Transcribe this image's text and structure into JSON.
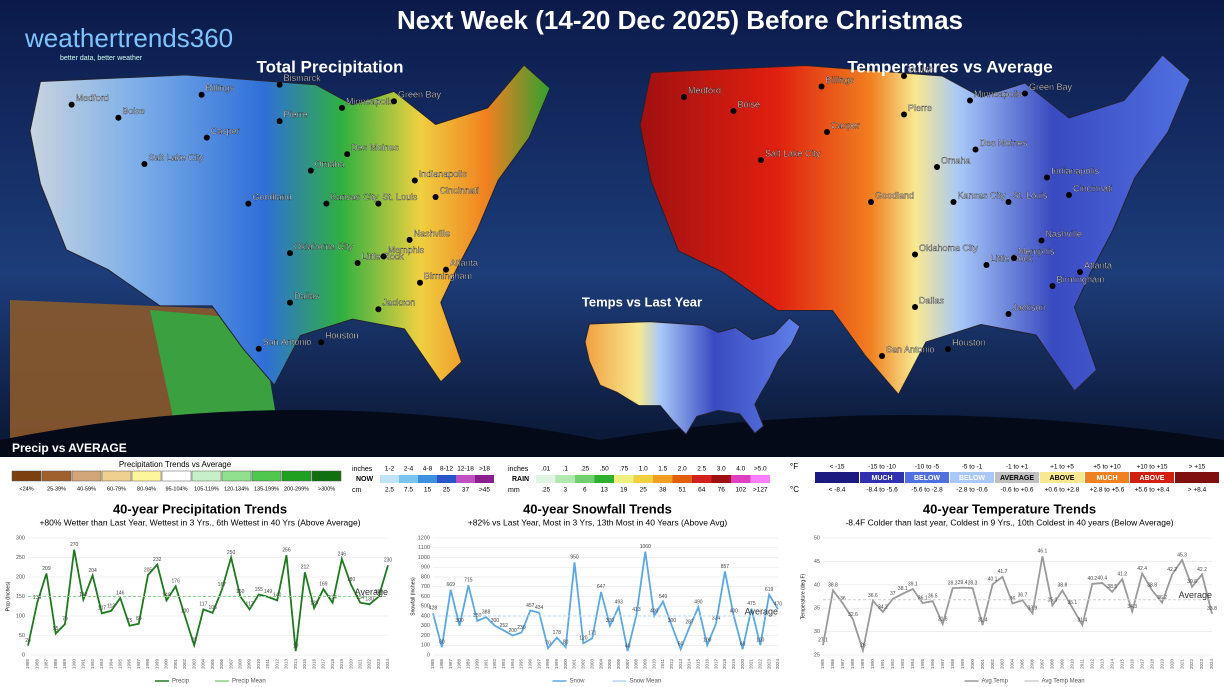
{
  "header": {
    "logo": "weathertrends360",
    "tagline": "better data, better weather",
    "title": "Next Week (14-20 Dec 2025) Before Christmas",
    "footnote": "Precip vs AVERAGE"
  },
  "maps": [
    {
      "title": "Total Precipitation",
      "cities": [
        "Medford",
        "Boise",
        "Billings",
        "Bismarck",
        "Casper",
        "Pierre",
        "Minneapolis",
        "Green Bay",
        "Salt Lake City",
        "Omaha",
        "Des Moines",
        "Goodland",
        "Kansas City",
        "St. Louis",
        "Indianapolis",
        "Cincinnati",
        "Nashville",
        "Oklahoma City",
        "Little Rock",
        "Memphis",
        "Atlanta",
        "Birmingham",
        "Dallas",
        "Jackson",
        "San Antonio",
        "Houston"
      ]
    },
    {
      "title": "Temperatures vs Average",
      "cities": [
        "Medford",
        "Boise",
        "Billings",
        "Duluth",
        "Casper",
        "Pierre",
        "Minneapolis",
        "Green Bay",
        "Salt Lake City",
        "Omaha",
        "Des Moines",
        "Goodland",
        "Kansas City",
        "St. Louis",
        "Indianapolis",
        "Cincinnati",
        "Nashville",
        "Oklahoma City",
        "Little Rock",
        "Memphis",
        "Atlanta",
        "Birmingham",
        "Dallas",
        "Jackson",
        "San Antonio",
        "Houston"
      ]
    },
    {
      "title": "Temps vs Last Year",
      "cities": []
    }
  ],
  "legends": {
    "precip": {
      "title": "Precipitation Trends vs Average",
      "items": [
        {
          "label": "<24%",
          "color": "#7b3f10"
        },
        {
          "label": "25-39%",
          "color": "#a0602d"
        },
        {
          "label": "40-59%",
          "color": "#d2a679"
        },
        {
          "label": "60-79%",
          "color": "#f0d090"
        },
        {
          "label": "80-94%",
          "color": "#fff59a"
        },
        {
          "label": "95-104%",
          "color": "#ffffff"
        },
        {
          "label": "105-119%",
          "color": "#c8f0c8"
        },
        {
          "label": "120-134%",
          "color": "#90e090"
        },
        {
          "label": "135-199%",
          "color": "#50c850"
        },
        {
          "label": "200-299%",
          "color": "#20a020"
        },
        {
          "label": ">300%",
          "color": "#107010"
        }
      ]
    },
    "snow": {
      "unit_top": "inches",
      "unit_mid": "NOW",
      "unit_bottom": "cm",
      "top": [
        "1-2",
        "2-4",
        "4-8",
        "8-12",
        "12-18",
        ">18"
      ],
      "bottom": [
        "2.5",
        "7.5",
        "15",
        "25",
        "37",
        ">45"
      ],
      "colors": [
        "#bfe3f7",
        "#7cc3f0",
        "#3d8fe0",
        "#2a55c8",
        "#c050c0",
        "#8a2090"
      ]
    },
    "rain": {
      "unit_top": "inches",
      "unit_mid": "RAIN",
      "unit_bottom": "mm",
      "top": [
        ".01",
        ".1",
        ".25",
        ".50",
        ".75",
        "1.0",
        "1.5",
        "2.0",
        "2.5",
        "3.0",
        "4.0",
        ">5.0"
      ],
      "bottom": [
        ".25",
        "3",
        "6",
        "13",
        "19",
        "25",
        "38",
        "51",
        "64",
        "76",
        "102",
        ">127"
      ],
      "colors": [
        "#e0f5e0",
        "#b0e8b0",
        "#70d070",
        "#30b030",
        "#f0f080",
        "#f0d040",
        "#f0a020",
        "#e06010",
        "#d02020",
        "#a01010",
        "#e040c0",
        "#ff80ff"
      ]
    },
    "temp": {
      "unit_f": "°F",
      "unit_c": "°C",
      "items": [
        {
          "f": "< -15",
          "c": "< -8.4",
          "color": "#1a1a80"
        },
        {
          "f": "-15 to -10",
          "c": "-8.4 to -5.6",
          "color": "#3030b0",
          "word": "MUCH"
        },
        {
          "f": "-10 to -5",
          "c": "-5.6 to -2.8",
          "color": "#5070e0",
          "word": "BELOW"
        },
        {
          "f": "-5 to -1",
          "c": "-2.8 to -0.6",
          "color": "#a8c8f8",
          "word": "BELOW"
        },
        {
          "f": "-1 to +1",
          "c": "-0.6 to +0.6",
          "color": "#c0c0c0",
          "word": "AVERAGE"
        },
        {
          "f": "+1 to +5",
          "c": "+0.6 to +2.8",
          "color": "#f8e890",
          "word": "ABOVE"
        },
        {
          "f": "+5 to +10",
          "c": "+2.8 to +5.6",
          "color": "#f08020",
          "word": "MUCH"
        },
        {
          "f": "+10 to +15",
          "c": "+5.6 to +8.4",
          "color": "#d02010",
          "word": "ABOVE"
        },
        {
          "f": "> +15",
          "c": "> +8.4",
          "color": "#801010"
        }
      ]
    }
  },
  "chart_data": [
    {
      "type": "line",
      "title": "40-year Precipitation Trends",
      "subtitle": "+80% Wetter than Last Year, Wettest in 3 Yrs., 6th Wettest in 40 Yrs (Above Average)",
      "ylabel": "Prcp (Inches)",
      "annotation": "Average",
      "x": [
        1985,
        1986,
        1987,
        1988,
        1989,
        1990,
        1991,
        1992,
        1993,
        1994,
        1995,
        1996,
        1997,
        1998,
        1999,
        2000,
        2001,
        2002,
        2003,
        2004,
        2005,
        2006,
        2007,
        2008,
        2009,
        2010,
        2011,
        2012,
        2013,
        2014,
        2015,
        2016,
        2017,
        2018,
        2019,
        2020,
        2021,
        2022,
        2023,
        2024
      ],
      "xlim": [
        1985,
        2024
      ],
      "ylim": [
        0,
        300
      ],
      "yticks": [
        0,
        50,
        100,
        150,
        200,
        250,
        300
      ],
      "series": [
        {
          "name": "Precip",
          "color": "#1e7a1e",
          "values": [
            24,
            134,
            209,
            55,
            79,
            270,
            142,
            204,
            107,
            113,
            146,
            75,
            80,
            205,
            232,
            140,
            176,
            100,
            25,
            117,
            108,
            167,
            250,
            150,
            117,
            155,
            149,
            140,
            256,
            10,
            212,
            120,
            169,
            134,
            246,
            180,
            134,
            130,
            150,
            230
          ]
        },
        {
          "name": "Precip Mean",
          "color": "#8ccf8c",
          "values": [
            150,
            150,
            150,
            150,
            150,
            150,
            150,
            150,
            150,
            150,
            150,
            150,
            150,
            150,
            150,
            150,
            150,
            150,
            150,
            150,
            150,
            150,
            150,
            150,
            150,
            150,
            150,
            150,
            150,
            150,
            150,
            150,
            150,
            150,
            150,
            150,
            150,
            150,
            150,
            150
          ]
        }
      ]
    },
    {
      "type": "line",
      "title": "40-year Snowfall Trends",
      "subtitle": "+82% vs Last Year, Most in 3 Yrs, 13th Most in 40 Years (Above Avg)",
      "ylabel": "Snowfall (Inches)",
      "annotation": "Average",
      "x": [
        1985,
        1986,
        1987,
        1988,
        1989,
        1990,
        1991,
        1992,
        1993,
        1994,
        1995,
        1996,
        1997,
        1998,
        1999,
        2000,
        2001,
        2002,
        2003,
        2004,
        2005,
        2006,
        2007,
        2008,
        2009,
        2010,
        2011,
        2012,
        2013,
        2014,
        2015,
        2016,
        2017,
        2018,
        2019,
        2020,
        2021,
        2022,
        2023,
        2024
      ],
      "xlim": [
        1985,
        2024
      ],
      "ylim": [
        0,
        1200
      ],
      "yticks": [
        0,
        100,
        200,
        300,
        400,
        500,
        600,
        700,
        800,
        900,
        1000,
        1100,
        1200
      ],
      "series": [
        {
          "name": "Snow",
          "color": "#5aa9e6",
          "values": [
            428,
            80,
            669,
            300,
            715,
            350,
            388,
            300,
            252,
            200,
            230,
            457,
            434,
            70,
            178,
            80,
            950,
            120,
            171,
            647,
            300,
            493,
            40,
            413,
            1060,
            400,
            549,
            300,
            60,
            287,
            490,
            100,
            324,
            857,
            400,
            60,
            475,
            100,
            619,
            470
          ]
        },
        {
          "name": "Snow Mean",
          "color": "#b4d8f4",
          "values": [
            400,
            400,
            400,
            400,
            400,
            400,
            400,
            400,
            400,
            400,
            400,
            400,
            400,
            400,
            400,
            400,
            400,
            400,
            400,
            400,
            400,
            400,
            400,
            400,
            400,
            400,
            400,
            400,
            400,
            400,
            400,
            400,
            400,
            400,
            400,
            400,
            400,
            400,
            400,
            400
          ]
        }
      ]
    },
    {
      "type": "line",
      "title": "40-year Temperature Trends",
      "subtitle": "-8.4F Colder than last year, Coldest in 9 Yrs., 10th Coldest in 40 years (Below Average)",
      "ylabel": "Temperature (deg F)",
      "annotation": "Average",
      "x": [
        1985,
        1986,
        1987,
        1988,
        1989,
        1990,
        1991,
        1992,
        1993,
        1994,
        1995,
        1996,
        1997,
        1998,
        1999,
        2000,
        2001,
        2002,
        2003,
        2004,
        2005,
        2006,
        2007,
        2008,
        2009,
        2010,
        2011,
        2012,
        2013,
        2014,
        2015,
        2016,
        2017,
        2018,
        2019,
        2020,
        2021,
        2022,
        2023,
        2024
      ],
      "xlim": [
        1985,
        2024
      ],
      "ylim": [
        25,
        50
      ],
      "yticks": [
        25,
        30,
        35,
        40,
        45,
        50
      ],
      "series": [
        {
          "name": "Avg Temp",
          "color": "#9a9a9a",
          "values": [
            27.1,
            38.8,
            36,
            32.6,
            26,
            36.6,
            34.2,
            37,
            38.1,
            39.1,
            36.1,
            36.5,
            31.6,
            39.3,
            39.4,
            39.3,
            31.4,
            40.1,
            41.7,
            36,
            36.7,
            33.9,
            46.1,
            35.6,
            38.8,
            35.1,
            31.4,
            40.2,
            40.4,
            38.5,
            41.2,
            34.3,
            42.4,
            38.8,
            36.2,
            42.2,
            45.3,
            39.6,
            42.2,
            33.8
          ]
        },
        {
          "name": "Avg Temp Mean",
          "color": "#cfcfcf",
          "values": [
            36.8,
            36.8,
            36.8,
            36.8,
            36.8,
            36.8,
            36.8,
            36.8,
            36.8,
            36.8,
            36.8,
            36.8,
            36.8,
            36.8,
            36.8,
            36.8,
            36.8,
            36.8,
            36.8,
            36.8,
            36.8,
            36.8,
            36.8,
            36.8,
            36.8,
            36.8,
            36.8,
            36.8,
            36.8,
            36.8,
            36.8,
            36.8,
            36.8,
            36.8,
            36.8,
            36.8,
            36.8,
            36.8,
            36.8,
            36.8
          ]
        }
      ]
    }
  ]
}
